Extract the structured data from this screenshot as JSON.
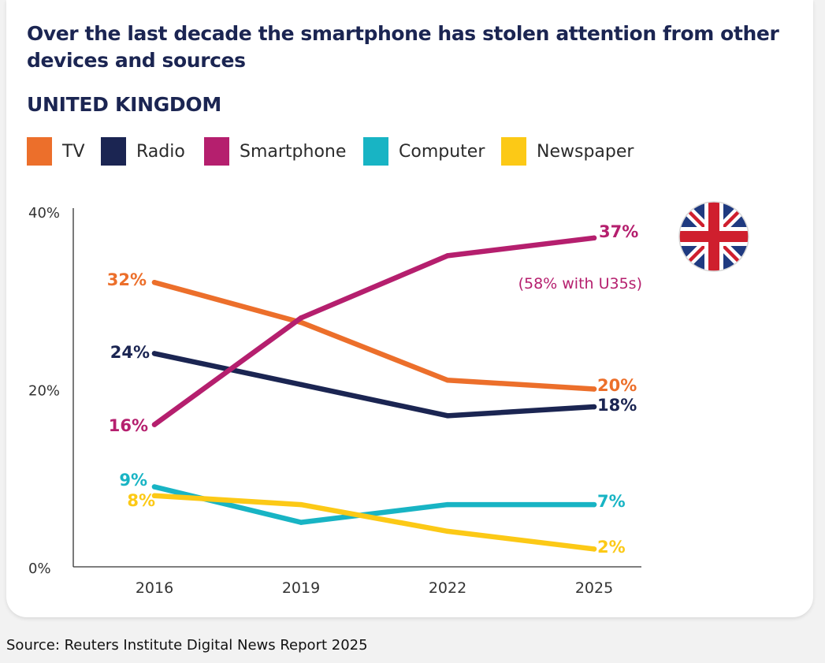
{
  "header": {
    "title": "Over the last decade the smartphone has stolen attention from other devices and sources",
    "region": "UNITED KINGDOM"
  },
  "legend": [
    {
      "label": "TV",
      "color": "#ec6f2b"
    },
    {
      "label": "Radio",
      "color": "#1b2552"
    },
    {
      "label": "Smartphone",
      "color": "#b51f6e"
    },
    {
      "label": "Computer",
      "color": "#18b4c4"
    },
    {
      "label": "Newspaper",
      "color": "#fcc916"
    }
  ],
  "flag": {
    "icon": "union-jack-flag-icon"
  },
  "source": "Source: Reuters Institute Digital News Report 2025",
  "chart_data": {
    "type": "line",
    "title": "Over the last decade the smartphone has stolen attention from other devices and sources",
    "subtitle": "UNITED KINGDOM",
    "xlabel": "",
    "ylabel": "",
    "categories": [
      "2016",
      "2019",
      "2022",
      "2025"
    ],
    "ylim": [
      0,
      40
    ],
    "yticks": [
      "0%",
      "20%",
      "40%"
    ],
    "ytick_values": [
      0,
      20,
      40
    ],
    "grid": false,
    "legend_position": "top",
    "series": [
      {
        "name": "TV",
        "color": "#ec6f2b",
        "values": [
          32,
          27.5,
          21,
          20
        ],
        "start_label": "32%",
        "end_label": "20%"
      },
      {
        "name": "Radio",
        "color": "#1b2552",
        "values": [
          24,
          20.5,
          17,
          18
        ],
        "start_label": "24%",
        "end_label": "18%"
      },
      {
        "name": "Smartphone",
        "color": "#b51f6e",
        "values": [
          16,
          28,
          35,
          37
        ],
        "start_label": "16%",
        "end_label": "37%"
      },
      {
        "name": "Computer",
        "color": "#18b4c4",
        "values": [
          9,
          5,
          7,
          7
        ],
        "start_label": "9%",
        "end_label": "7%"
      },
      {
        "name": "Newspaper",
        "color": "#fcc916",
        "values": [
          8,
          7,
          4,
          2
        ],
        "start_label": "8%",
        "end_label": "2%"
      }
    ],
    "annotations": [
      {
        "series": "Smartphone",
        "text": "(58% with U35s)"
      }
    ]
  }
}
